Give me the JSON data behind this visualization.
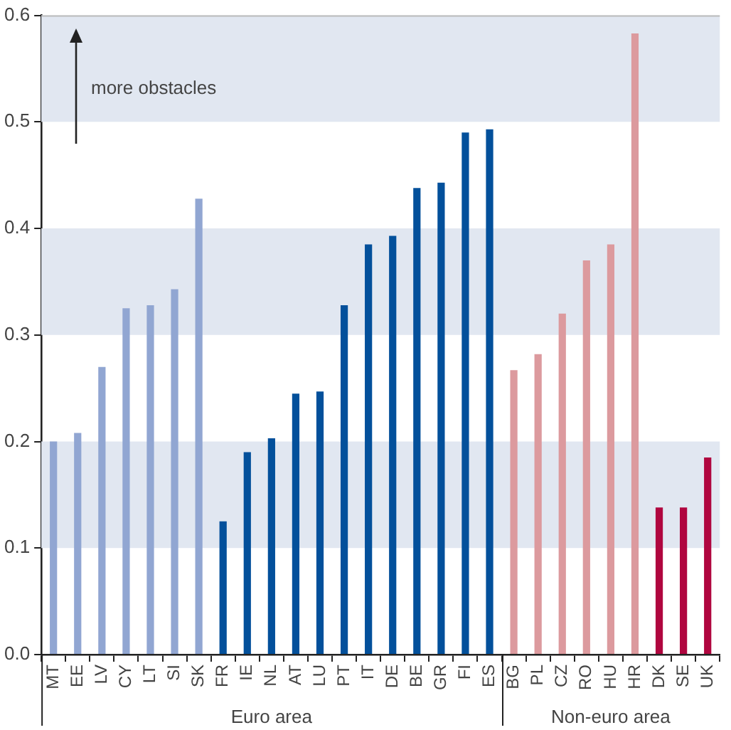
{
  "chart_data": {
    "type": "bar",
    "categories": [
      "MT",
      "EE",
      "LV",
      "CY",
      "LT",
      "SI",
      "SK",
      "FR",
      "IE",
      "NL",
      "AT",
      "LU",
      "PT",
      "IT",
      "DE",
      "BE",
      "GR",
      "FI",
      "ES",
      "BG",
      "PL",
      "CZ",
      "RO",
      "HU",
      "HR",
      "DK",
      "SE",
      "UK"
    ],
    "values": [
      0.2,
      0.208,
      0.27,
      0.325,
      0.328,
      0.343,
      0.428,
      0.125,
      0.19,
      0.203,
      0.245,
      0.247,
      0.328,
      0.385,
      0.393,
      0.438,
      0.443,
      0.49,
      0.493,
      0.267,
      0.282,
      0.32,
      0.37,
      0.385,
      0.583,
      0.138,
      0.138,
      0.185
    ],
    "colors": [
      "#91a6d2",
      "#91a6d2",
      "#91a6d2",
      "#91a6d2",
      "#91a6d2",
      "#91a6d2",
      "#91a6d2",
      "#03509b",
      "#03509b",
      "#03509b",
      "#03509b",
      "#03509b",
      "#03509b",
      "#03509b",
      "#03509b",
      "#03509b",
      "#03509b",
      "#03509b",
      "#03509b",
      "#dc9a9e",
      "#dc9a9e",
      "#dc9a9e",
      "#dc9a9e",
      "#dc9a9e",
      "#dc9a9e",
      "#b0063f",
      "#b0063f",
      "#b0063f"
    ],
    "ylim": [
      0,
      0.6
    ],
    "yticks": [
      {
        "value": 0,
        "label": "0.0"
      },
      {
        "value": 0.1,
        "label": "0.1"
      },
      {
        "value": 0.2,
        "label": "0.2"
      },
      {
        "value": 0.3,
        "label": "0.3"
      },
      {
        "value": 0.4,
        "label": "0.4"
      },
      {
        "value": 0.5,
        "label": "0.5"
      },
      {
        "value": 0.6,
        "label": "0.6"
      }
    ],
    "bands": [
      {
        "axis": "y",
        "from": 0.1,
        "to": 0.2,
        "color": "#e1e7f1"
      },
      {
        "axis": "y",
        "from": 0.3,
        "to": 0.4,
        "color": "#e1e7f1"
      },
      {
        "axis": "y",
        "from": 0.5,
        "to": 0.6,
        "color": "#e1e7f1"
      }
    ],
    "annotations": [
      "more obstacles",
      "Euro area",
      "Non-euro area"
    ]
  }
}
